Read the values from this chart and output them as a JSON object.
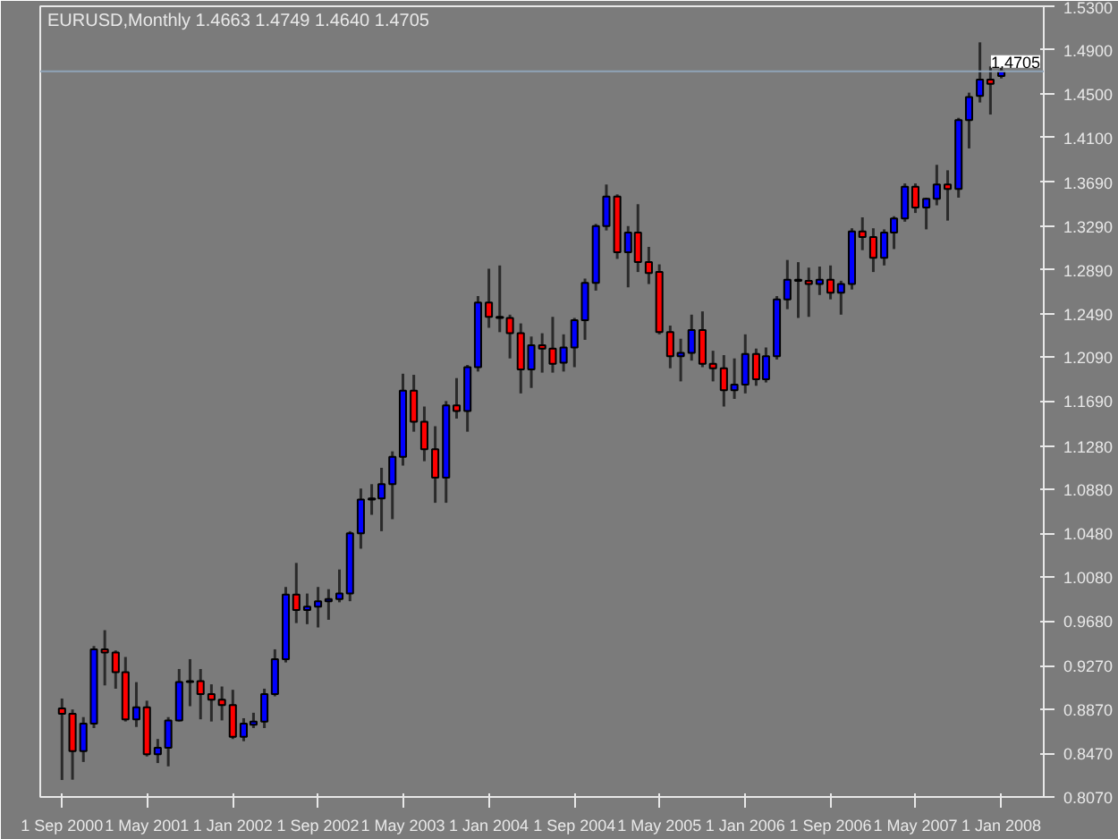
{
  "chart_data": {
    "type": "candlestick",
    "title": "EURUSD,Monthly  1.4663 1.4749 1.4640 1.4705",
    "x": [
      "2000-09",
      "2000-10",
      "2000-11",
      "2000-12",
      "2001-01",
      "2001-02",
      "2001-03",
      "2001-04",
      "2001-05",
      "2001-06",
      "2001-07",
      "2001-08",
      "2001-09",
      "2001-10",
      "2001-11",
      "2001-12",
      "2002-01",
      "2002-02",
      "2002-03",
      "2002-04",
      "2002-05",
      "2002-06",
      "2002-07",
      "2002-08",
      "2002-09",
      "2002-10",
      "2002-11",
      "2002-12",
      "2003-01",
      "2003-02",
      "2003-03",
      "2003-04",
      "2003-05",
      "2003-06",
      "2003-07",
      "2003-08",
      "2003-09",
      "2003-10",
      "2003-11",
      "2003-12",
      "2004-01",
      "2004-02",
      "2004-03",
      "2004-04",
      "2004-05",
      "2004-06",
      "2004-07",
      "2004-08",
      "2004-09",
      "2004-10",
      "2004-11",
      "2004-12",
      "2005-01",
      "2005-02",
      "2005-03",
      "2005-04",
      "2005-05",
      "2005-06",
      "2005-07",
      "2005-08",
      "2005-09",
      "2005-10",
      "2005-11",
      "2005-12",
      "2006-01",
      "2006-02",
      "2006-03",
      "2006-04",
      "2006-05",
      "2006-06",
      "2006-07",
      "2006-08",
      "2006-09",
      "2006-10",
      "2006-11",
      "2006-12",
      "2007-01",
      "2007-02",
      "2007-03",
      "2007-04",
      "2007-05",
      "2007-06",
      "2007-07",
      "2007-08",
      "2007-09",
      "2007-10",
      "2007-11",
      "2007-12",
      "2008-01"
    ],
    "ohlc": [
      [
        0.888,
        0.897,
        0.8225,
        0.883
      ],
      [
        0.883,
        0.887,
        0.8228,
        0.849
      ],
      [
        0.849,
        0.88,
        0.839,
        0.874
      ],
      [
        0.874,
        0.945,
        0.87,
        0.942
      ],
      [
        0.942,
        0.9595,
        0.909,
        0.939
      ],
      [
        0.939,
        0.941,
        0.906,
        0.921
      ],
      [
        0.921,
        0.935,
        0.876,
        0.878
      ],
      [
        0.878,
        0.912,
        0.871,
        0.889
      ],
      [
        0.889,
        0.895,
        0.844,
        0.846
      ],
      [
        0.846,
        0.86,
        0.838,
        0.852
      ],
      [
        0.852,
        0.88,
        0.835,
        0.877
      ],
      [
        0.877,
        0.924,
        0.876,
        0.912
      ],
      [
        0.912,
        0.933,
        0.89,
        0.913
      ],
      [
        0.913,
        0.924,
        0.878,
        0.901
      ],
      [
        0.901,
        0.91,
        0.876,
        0.896
      ],
      [
        0.896,
        0.908,
        0.877,
        0.891
      ],
      [
        0.891,
        0.905,
        0.86,
        0.862
      ],
      [
        0.862,
        0.879,
        0.858,
        0.874
      ],
      [
        0.873,
        0.884,
        0.87,
        0.876
      ],
      [
        0.876,
        0.906,
        0.87,
        0.901
      ],
      [
        0.901,
        0.942,
        0.899,
        0.933
      ],
      [
        0.933,
        0.999,
        0.93,
        0.992
      ],
      [
        0.992,
        1.021,
        0.966,
        0.978
      ],
      [
        0.978,
        0.993,
        0.965,
        0.981
      ],
      [
        0.981,
        0.999,
        0.962,
        0.986
      ],
      [
        0.986,
        0.997,
        0.969,
        0.988
      ],
      [
        0.988,
        1.015,
        0.985,
        0.993
      ],
      [
        0.993,
        1.05,
        0.986,
        1.048
      ],
      [
        1.048,
        1.089,
        1.034,
        1.079
      ],
      [
        1.079,
        1.093,
        1.065,
        1.08
      ],
      [
        1.08,
        1.108,
        1.05,
        1.093
      ],
      [
        1.093,
        1.123,
        1.061,
        1.118
      ],
      [
        1.118,
        1.194,
        1.11,
        1.1785
      ],
      [
        1.1785,
        1.193,
        1.141,
        1.15
      ],
      [
        1.15,
        1.164,
        1.114,
        1.125
      ],
      [
        1.125,
        1.146,
        1.076,
        1.099
      ],
      [
        1.099,
        1.169,
        1.076,
        1.165
      ],
      [
        1.165,
        1.19,
        1.153,
        1.16
      ],
      [
        1.16,
        1.202,
        1.141,
        1.2
      ],
      [
        1.2,
        1.265,
        1.196,
        1.259
      ],
      [
        1.259,
        1.29,
        1.236,
        1.246
      ],
      [
        1.246,
        1.293,
        1.232,
        1.245
      ],
      [
        1.245,
        1.248,
        1.208,
        1.231
      ],
      [
        1.231,
        1.24,
        1.176,
        1.198
      ],
      [
        1.198,
        1.228,
        1.181,
        1.22
      ],
      [
        1.22,
        1.231,
        1.195,
        1.217
      ],
      [
        1.217,
        1.246,
        1.195,
        1.203
      ],
      [
        1.204,
        1.23,
        1.196,
        1.218
      ],
      [
        1.218,
        1.245,
        1.2,
        1.243
      ],
      [
        1.243,
        1.281,
        1.225,
        1.277
      ],
      [
        1.277,
        1.331,
        1.27,
        1.329
      ],
      [
        1.329,
        1.367,
        1.325,
        1.356
      ],
      [
        1.356,
        1.358,
        1.299,
        1.305
      ],
      [
        1.305,
        1.329,
        1.273,
        1.323
      ],
      [
        1.323,
        1.349,
        1.287,
        1.296
      ],
      [
        1.296,
        1.31,
        1.276,
        1.286
      ],
      [
        1.287,
        1.294,
        1.23,
        1.232
      ],
      [
        1.232,
        1.238,
        1.199,
        1.21
      ],
      [
        1.21,
        1.226,
        1.187,
        1.213
      ],
      [
        1.213,
        1.248,
        1.206,
        1.234
      ],
      [
        1.234,
        1.251,
        1.2,
        1.203
      ],
      [
        1.203,
        1.215,
        1.187,
        1.199
      ],
      [
        1.199,
        1.211,
        1.164,
        1.179
      ],
      [
        1.179,
        1.208,
        1.171,
        1.184
      ],
      [
        1.184,
        1.23,
        1.176,
        1.212
      ],
      [
        1.212,
        1.217,
        1.183,
        1.189
      ],
      [
        1.189,
        1.218,
        1.186,
        1.21
      ],
      [
        1.21,
        1.265,
        1.207,
        1.262
      ],
      [
        1.262,
        1.298,
        1.253,
        1.28
      ],
      [
        1.28,
        1.296,
        1.245,
        1.279
      ],
      [
        1.279,
        1.291,
        1.246,
        1.276
      ],
      [
        1.276,
        1.292,
        1.266,
        1.28
      ],
      [
        1.28,
        1.293,
        1.262,
        1.268
      ],
      [
        1.268,
        1.279,
        1.248,
        1.276
      ],
      [
        1.276,
        1.327,
        1.271,
        1.324
      ],
      [
        1.324,
        1.337,
        1.307,
        1.319
      ],
      [
        1.319,
        1.327,
        1.287,
        1.3
      ],
      [
        1.3,
        1.326,
        1.293,
        1.323
      ],
      [
        1.323,
        1.338,
        1.308,
        1.336
      ],
      [
        1.336,
        1.368,
        1.333,
        1.365
      ],
      [
        1.365,
        1.368,
        1.341,
        1.346
      ],
      [
        1.346,
        1.355,
        1.326,
        1.354
      ],
      [
        1.354,
        1.385,
        1.348,
        1.367
      ],
      [
        1.367,
        1.38,
        1.334,
        1.363
      ],
      [
        1.363,
        1.428,
        1.355,
        1.426
      ],
      [
        1.426,
        1.451,
        1.4,
        1.447
      ],
      [
        1.448,
        1.497,
        1.442,
        1.463
      ],
      [
        1.463,
        1.475,
        1.431,
        1.459
      ],
      [
        1.4663,
        1.4749,
        1.464,
        1.4705
      ]
    ],
    "colors": [
      "#ff0000",
      "#ff0000",
      "#0000ff",
      "#0000ff",
      "#ff0000",
      "#ff0000",
      "#ff0000",
      "#0000ff",
      "#ff0000",
      "#0000ff",
      "#0000ff",
      "#0000ff",
      "#0000ff",
      "#ff0000",
      "#ff0000",
      "#ff0000",
      "#ff0000",
      "#0000ff",
      "#0000ff",
      "#0000ff",
      "#0000ff",
      "#0000ff",
      "#ff0000",
      "#0000ff",
      "#0000ff",
      "#0000ff",
      "#0000ff",
      "#0000ff",
      "#0000ff",
      "#0000ff",
      "#0000ff",
      "#0000ff",
      "#0000ff",
      "#ff0000",
      "#ff0000",
      "#ff0000",
      "#0000ff",
      "#ff0000",
      "#0000ff",
      "#0000ff",
      "#ff0000",
      "#ff0000",
      "#ff0000",
      "#ff0000",
      "#0000ff",
      "#ff0000",
      "#ff0000",
      "#0000ff",
      "#0000ff",
      "#0000ff",
      "#0000ff",
      "#0000ff",
      "#ff0000",
      "#0000ff",
      "#ff0000",
      "#ff0000",
      "#ff0000",
      "#ff0000",
      "#0000ff",
      "#0000ff",
      "#ff0000",
      "#ff0000",
      "#ff0000",
      "#0000ff",
      "#0000ff",
      "#ff0000",
      "#0000ff",
      "#0000ff",
      "#0000ff",
      "#ff0000",
      "#ff0000",
      "#0000ff",
      "#ff0000",
      "#0000ff",
      "#0000ff",
      "#ff0000",
      "#ff0000",
      "#0000ff",
      "#0000ff",
      "#0000ff",
      "#ff0000",
      "#0000ff",
      "#0000ff",
      "#ff0000",
      "#0000ff",
      "#0000ff",
      "#0000ff",
      "#ff0000",
      "#0000ff"
    ],
    "xlim": [
      "2000-07-01",
      "2008-05-01"
    ],
    "xticks": [
      {
        "value": "2000-09-01",
        "label": "1 Sep 2000"
      },
      {
        "value": "2001-05-01",
        "label": "1 May 2001"
      },
      {
        "value": "2002-01-01",
        "label": "1 Jan 2002"
      },
      {
        "value": "2002-09-01",
        "label": "1 Sep 2002"
      },
      {
        "value": "2003-05-01",
        "label": "1 May 2003"
      },
      {
        "value": "2004-01-01",
        "label": "1 Jan 2004"
      },
      {
        "value": "2004-09-01",
        "label": "1 Sep 2004"
      },
      {
        "value": "2005-05-01",
        "label": "1 May 2005"
      },
      {
        "value": "2006-01-01",
        "label": "1 Jan 2006"
      },
      {
        "value": "2006-09-01",
        "label": "1 Sep 2006"
      },
      {
        "value": "2007-05-01",
        "label": "1 May 2007"
      },
      {
        "value": "2008-01-01",
        "label": "1 Jan 2008"
      }
    ],
    "ylim": [
      0.807,
      1.53
    ],
    "yticks": [
      {
        "value": 0.807,
        "label": "0.8070"
      },
      {
        "value": 0.847,
        "label": "0.8470"
      },
      {
        "value": 0.887,
        "label": "0.8870"
      },
      {
        "value": 0.927,
        "label": "0.9270"
      },
      {
        "value": 0.968,
        "label": "0.9680"
      },
      {
        "value": 1.008,
        "label": "1.0080"
      },
      {
        "value": 1.048,
        "label": "1.0480"
      },
      {
        "value": 1.088,
        "label": "1.0880"
      },
      {
        "value": 1.128,
        "label": "1.1280"
      },
      {
        "value": 1.169,
        "label": "1.1690"
      },
      {
        "value": 1.209,
        "label": "1.2090"
      },
      {
        "value": 1.249,
        "label": "1.2490"
      },
      {
        "value": 1.289,
        "label": "1.2890"
      },
      {
        "value": 1.329,
        "label": "1.3290"
      },
      {
        "value": 1.369,
        "label": "1.3690"
      },
      {
        "value": 1.41,
        "label": "1.4100"
      },
      {
        "value": 1.45,
        "label": "1.4500"
      },
      {
        "value": 1.49,
        "label": "1.4900"
      },
      {
        "value": 1.53,
        "label": "1.5300"
      }
    ],
    "ref_lines": [
      {
        "axis": "y",
        "value": 1.4705,
        "label": "1.4705",
        "color": "#8fa3b8"
      }
    ]
  }
}
